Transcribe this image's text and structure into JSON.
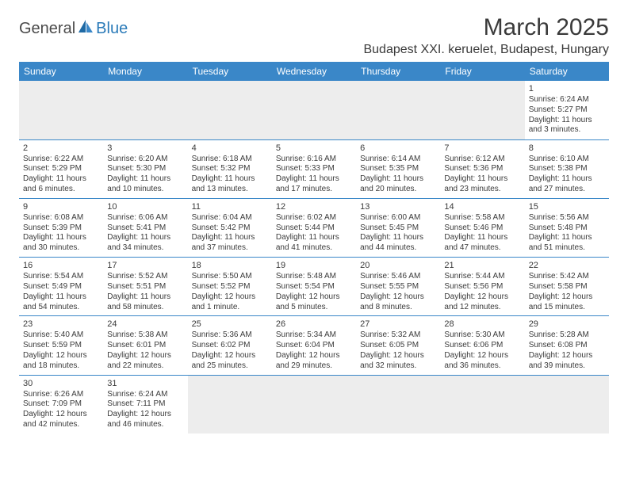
{
  "logo": {
    "textDark": "General",
    "textBlue": "Blue"
  },
  "header": {
    "monthTitle": "March 2025",
    "location": "Budapest XXI. keruelet, Budapest, Hungary"
  },
  "colors": {
    "headerBar": "#3a87c8",
    "rowDivider": "#3a87c8",
    "inactiveBg": "#ededed",
    "textBody": "#3a3a3a",
    "logoBlue": "#2a7ab8"
  },
  "dayHeaders": [
    "Sunday",
    "Monday",
    "Tuesday",
    "Wednesday",
    "Thursday",
    "Friday",
    "Saturday"
  ],
  "weeks": [
    [
      {
        "blank": true
      },
      {
        "blank": true
      },
      {
        "blank": true
      },
      {
        "blank": true
      },
      {
        "blank": true
      },
      {
        "blank": true
      },
      {
        "n": "1",
        "sr": "Sunrise: 6:24 AM",
        "ss": "Sunset: 5:27 PM",
        "d1": "Daylight: 11 hours",
        "d2": "and 3 minutes."
      }
    ],
    [
      {
        "n": "2",
        "sr": "Sunrise: 6:22 AM",
        "ss": "Sunset: 5:29 PM",
        "d1": "Daylight: 11 hours",
        "d2": "and 6 minutes."
      },
      {
        "n": "3",
        "sr": "Sunrise: 6:20 AM",
        "ss": "Sunset: 5:30 PM",
        "d1": "Daylight: 11 hours",
        "d2": "and 10 minutes."
      },
      {
        "n": "4",
        "sr": "Sunrise: 6:18 AM",
        "ss": "Sunset: 5:32 PM",
        "d1": "Daylight: 11 hours",
        "d2": "and 13 minutes."
      },
      {
        "n": "5",
        "sr": "Sunrise: 6:16 AM",
        "ss": "Sunset: 5:33 PM",
        "d1": "Daylight: 11 hours",
        "d2": "and 17 minutes."
      },
      {
        "n": "6",
        "sr": "Sunrise: 6:14 AM",
        "ss": "Sunset: 5:35 PM",
        "d1": "Daylight: 11 hours",
        "d2": "and 20 minutes."
      },
      {
        "n": "7",
        "sr": "Sunrise: 6:12 AM",
        "ss": "Sunset: 5:36 PM",
        "d1": "Daylight: 11 hours",
        "d2": "and 23 minutes."
      },
      {
        "n": "8",
        "sr": "Sunrise: 6:10 AM",
        "ss": "Sunset: 5:38 PM",
        "d1": "Daylight: 11 hours",
        "d2": "and 27 minutes."
      }
    ],
    [
      {
        "n": "9",
        "sr": "Sunrise: 6:08 AM",
        "ss": "Sunset: 5:39 PM",
        "d1": "Daylight: 11 hours",
        "d2": "and 30 minutes."
      },
      {
        "n": "10",
        "sr": "Sunrise: 6:06 AM",
        "ss": "Sunset: 5:41 PM",
        "d1": "Daylight: 11 hours",
        "d2": "and 34 minutes."
      },
      {
        "n": "11",
        "sr": "Sunrise: 6:04 AM",
        "ss": "Sunset: 5:42 PM",
        "d1": "Daylight: 11 hours",
        "d2": "and 37 minutes."
      },
      {
        "n": "12",
        "sr": "Sunrise: 6:02 AM",
        "ss": "Sunset: 5:44 PM",
        "d1": "Daylight: 11 hours",
        "d2": "and 41 minutes."
      },
      {
        "n": "13",
        "sr": "Sunrise: 6:00 AM",
        "ss": "Sunset: 5:45 PM",
        "d1": "Daylight: 11 hours",
        "d2": "and 44 minutes."
      },
      {
        "n": "14",
        "sr": "Sunrise: 5:58 AM",
        "ss": "Sunset: 5:46 PM",
        "d1": "Daylight: 11 hours",
        "d2": "and 47 minutes."
      },
      {
        "n": "15",
        "sr": "Sunrise: 5:56 AM",
        "ss": "Sunset: 5:48 PM",
        "d1": "Daylight: 11 hours",
        "d2": "and 51 minutes."
      }
    ],
    [
      {
        "n": "16",
        "sr": "Sunrise: 5:54 AM",
        "ss": "Sunset: 5:49 PM",
        "d1": "Daylight: 11 hours",
        "d2": "and 54 minutes."
      },
      {
        "n": "17",
        "sr": "Sunrise: 5:52 AM",
        "ss": "Sunset: 5:51 PM",
        "d1": "Daylight: 11 hours",
        "d2": "and 58 minutes."
      },
      {
        "n": "18",
        "sr": "Sunrise: 5:50 AM",
        "ss": "Sunset: 5:52 PM",
        "d1": "Daylight: 12 hours",
        "d2": "and 1 minute."
      },
      {
        "n": "19",
        "sr": "Sunrise: 5:48 AM",
        "ss": "Sunset: 5:54 PM",
        "d1": "Daylight: 12 hours",
        "d2": "and 5 minutes."
      },
      {
        "n": "20",
        "sr": "Sunrise: 5:46 AM",
        "ss": "Sunset: 5:55 PM",
        "d1": "Daylight: 12 hours",
        "d2": "and 8 minutes."
      },
      {
        "n": "21",
        "sr": "Sunrise: 5:44 AM",
        "ss": "Sunset: 5:56 PM",
        "d1": "Daylight: 12 hours",
        "d2": "and 12 minutes."
      },
      {
        "n": "22",
        "sr": "Sunrise: 5:42 AM",
        "ss": "Sunset: 5:58 PM",
        "d1": "Daylight: 12 hours",
        "d2": "and 15 minutes."
      }
    ],
    [
      {
        "n": "23",
        "sr": "Sunrise: 5:40 AM",
        "ss": "Sunset: 5:59 PM",
        "d1": "Daylight: 12 hours",
        "d2": "and 18 minutes."
      },
      {
        "n": "24",
        "sr": "Sunrise: 5:38 AM",
        "ss": "Sunset: 6:01 PM",
        "d1": "Daylight: 12 hours",
        "d2": "and 22 minutes."
      },
      {
        "n": "25",
        "sr": "Sunrise: 5:36 AM",
        "ss": "Sunset: 6:02 PM",
        "d1": "Daylight: 12 hours",
        "d2": "and 25 minutes."
      },
      {
        "n": "26",
        "sr": "Sunrise: 5:34 AM",
        "ss": "Sunset: 6:04 PM",
        "d1": "Daylight: 12 hours",
        "d2": "and 29 minutes."
      },
      {
        "n": "27",
        "sr": "Sunrise: 5:32 AM",
        "ss": "Sunset: 6:05 PM",
        "d1": "Daylight: 12 hours",
        "d2": "and 32 minutes."
      },
      {
        "n": "28",
        "sr": "Sunrise: 5:30 AM",
        "ss": "Sunset: 6:06 PM",
        "d1": "Daylight: 12 hours",
        "d2": "and 36 minutes."
      },
      {
        "n": "29",
        "sr": "Sunrise: 5:28 AM",
        "ss": "Sunset: 6:08 PM",
        "d1": "Daylight: 12 hours",
        "d2": "and 39 minutes."
      }
    ],
    [
      {
        "n": "30",
        "sr": "Sunrise: 6:26 AM",
        "ss": "Sunset: 7:09 PM",
        "d1": "Daylight: 12 hours",
        "d2": "and 42 minutes."
      },
      {
        "n": "31",
        "sr": "Sunrise: 6:24 AM",
        "ss": "Sunset: 7:11 PM",
        "d1": "Daylight: 12 hours",
        "d2": "and 46 minutes."
      },
      {
        "blank": true
      },
      {
        "blank": true
      },
      {
        "blank": true
      },
      {
        "blank": true
      },
      {
        "blank": true
      }
    ]
  ]
}
